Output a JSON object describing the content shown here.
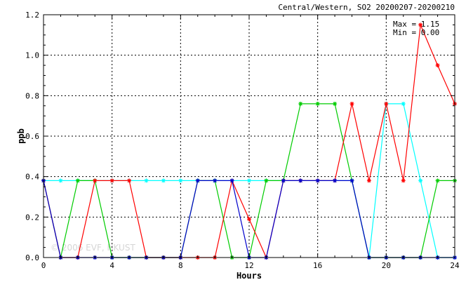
{
  "chart_data": {
    "type": "line",
    "title": "Central/Western, SO2 20200207-20200210",
    "xlabel": "Hours",
    "ylabel": "ppb",
    "xlim": [
      0,
      24
    ],
    "ylim": [
      0,
      1.2
    ],
    "xticks": [
      0,
      4,
      8,
      12,
      16,
      20,
      24
    ],
    "yticks": [
      0.0,
      0.2,
      0.4,
      0.6,
      0.8,
      1.0,
      1.2
    ],
    "xtick_labels": [
      "0",
      "4",
      "8",
      "12",
      "16",
      "20",
      "24"
    ],
    "ytick_labels": [
      "0.0",
      "0.2",
      "0.4",
      "0.6",
      "0.8",
      "1.0",
      "1.2"
    ],
    "grid": true,
    "stats": {
      "max_text": "Max = 1.15",
      "min_text": "Min = 0.00"
    },
    "watermark": "© 2006 EVF, HKUST",
    "series": [
      {
        "color": "#00ffff",
        "x": [
          0,
          1,
          2,
          3,
          4,
          5,
          6,
          7,
          8,
          9,
          10,
          11,
          12,
          13,
          14,
          15,
          16,
          17,
          18,
          19,
          20,
          21,
          22,
          23,
          24
        ],
        "values": [
          0.38,
          0.38,
          0.38,
          0.38,
          0.38,
          0.38,
          0.38,
          0.38,
          0.38,
          0.38,
          0.38,
          0.38,
          0.38,
          0.38,
          0.38,
          0.38,
          0.38,
          0.38,
          0.38,
          0.0,
          0.76,
          0.76,
          0.38,
          0.0,
          0.0
        ]
      },
      {
        "color": "#00cc00",
        "x": [
          0,
          1,
          2,
          3,
          4,
          5,
          6,
          7,
          8,
          9,
          10,
          11,
          12,
          13,
          14,
          15,
          16,
          17,
          18,
          19,
          20,
          21,
          22,
          23,
          24
        ],
        "values": [
          0.38,
          0.0,
          0.38,
          0.38,
          0.0,
          0.0,
          0.0,
          0.0,
          0.0,
          0.38,
          0.38,
          0.0,
          0.0,
          0.38,
          0.38,
          0.76,
          0.76,
          0.76,
          0.38,
          0.0,
          0.0,
          0.0,
          0.0,
          0.38,
          0.38
        ]
      },
      {
        "color": "#ff0000",
        "x": [
          0,
          1,
          2,
          3,
          4,
          5,
          6,
          7,
          8,
          9,
          10,
          11,
          12,
          13,
          14,
          15,
          16,
          17,
          18,
          19,
          20,
          21,
          22,
          23,
          24
        ],
        "values": [
          0.38,
          0.0,
          0.0,
          0.38,
          0.38,
          0.38,
          0.0,
          0.0,
          0.0,
          0.0,
          0.0,
          0.38,
          0.19,
          0.0,
          0.38,
          0.38,
          0.38,
          0.38,
          0.76,
          0.38,
          0.76,
          0.38,
          1.15,
          0.95,
          0.76
        ]
      },
      {
        "color": "#0000cc",
        "x": [
          0,
          1,
          2,
          3,
          4,
          5,
          6,
          7,
          8,
          9,
          10,
          11,
          12,
          13,
          14,
          15,
          16,
          17,
          18,
          19,
          20,
          21,
          22,
          23,
          24
        ],
        "values": [
          0.38,
          0.0,
          0.0,
          0.0,
          0.0,
          0.0,
          0.0,
          0.0,
          0.0,
          0.38,
          0.38,
          0.38,
          0.0,
          0.0,
          0.38,
          0.38,
          0.38,
          0.38,
          0.38,
          0.0,
          0.0,
          0.0,
          0.0,
          0.0,
          0.0
        ]
      }
    ]
  }
}
